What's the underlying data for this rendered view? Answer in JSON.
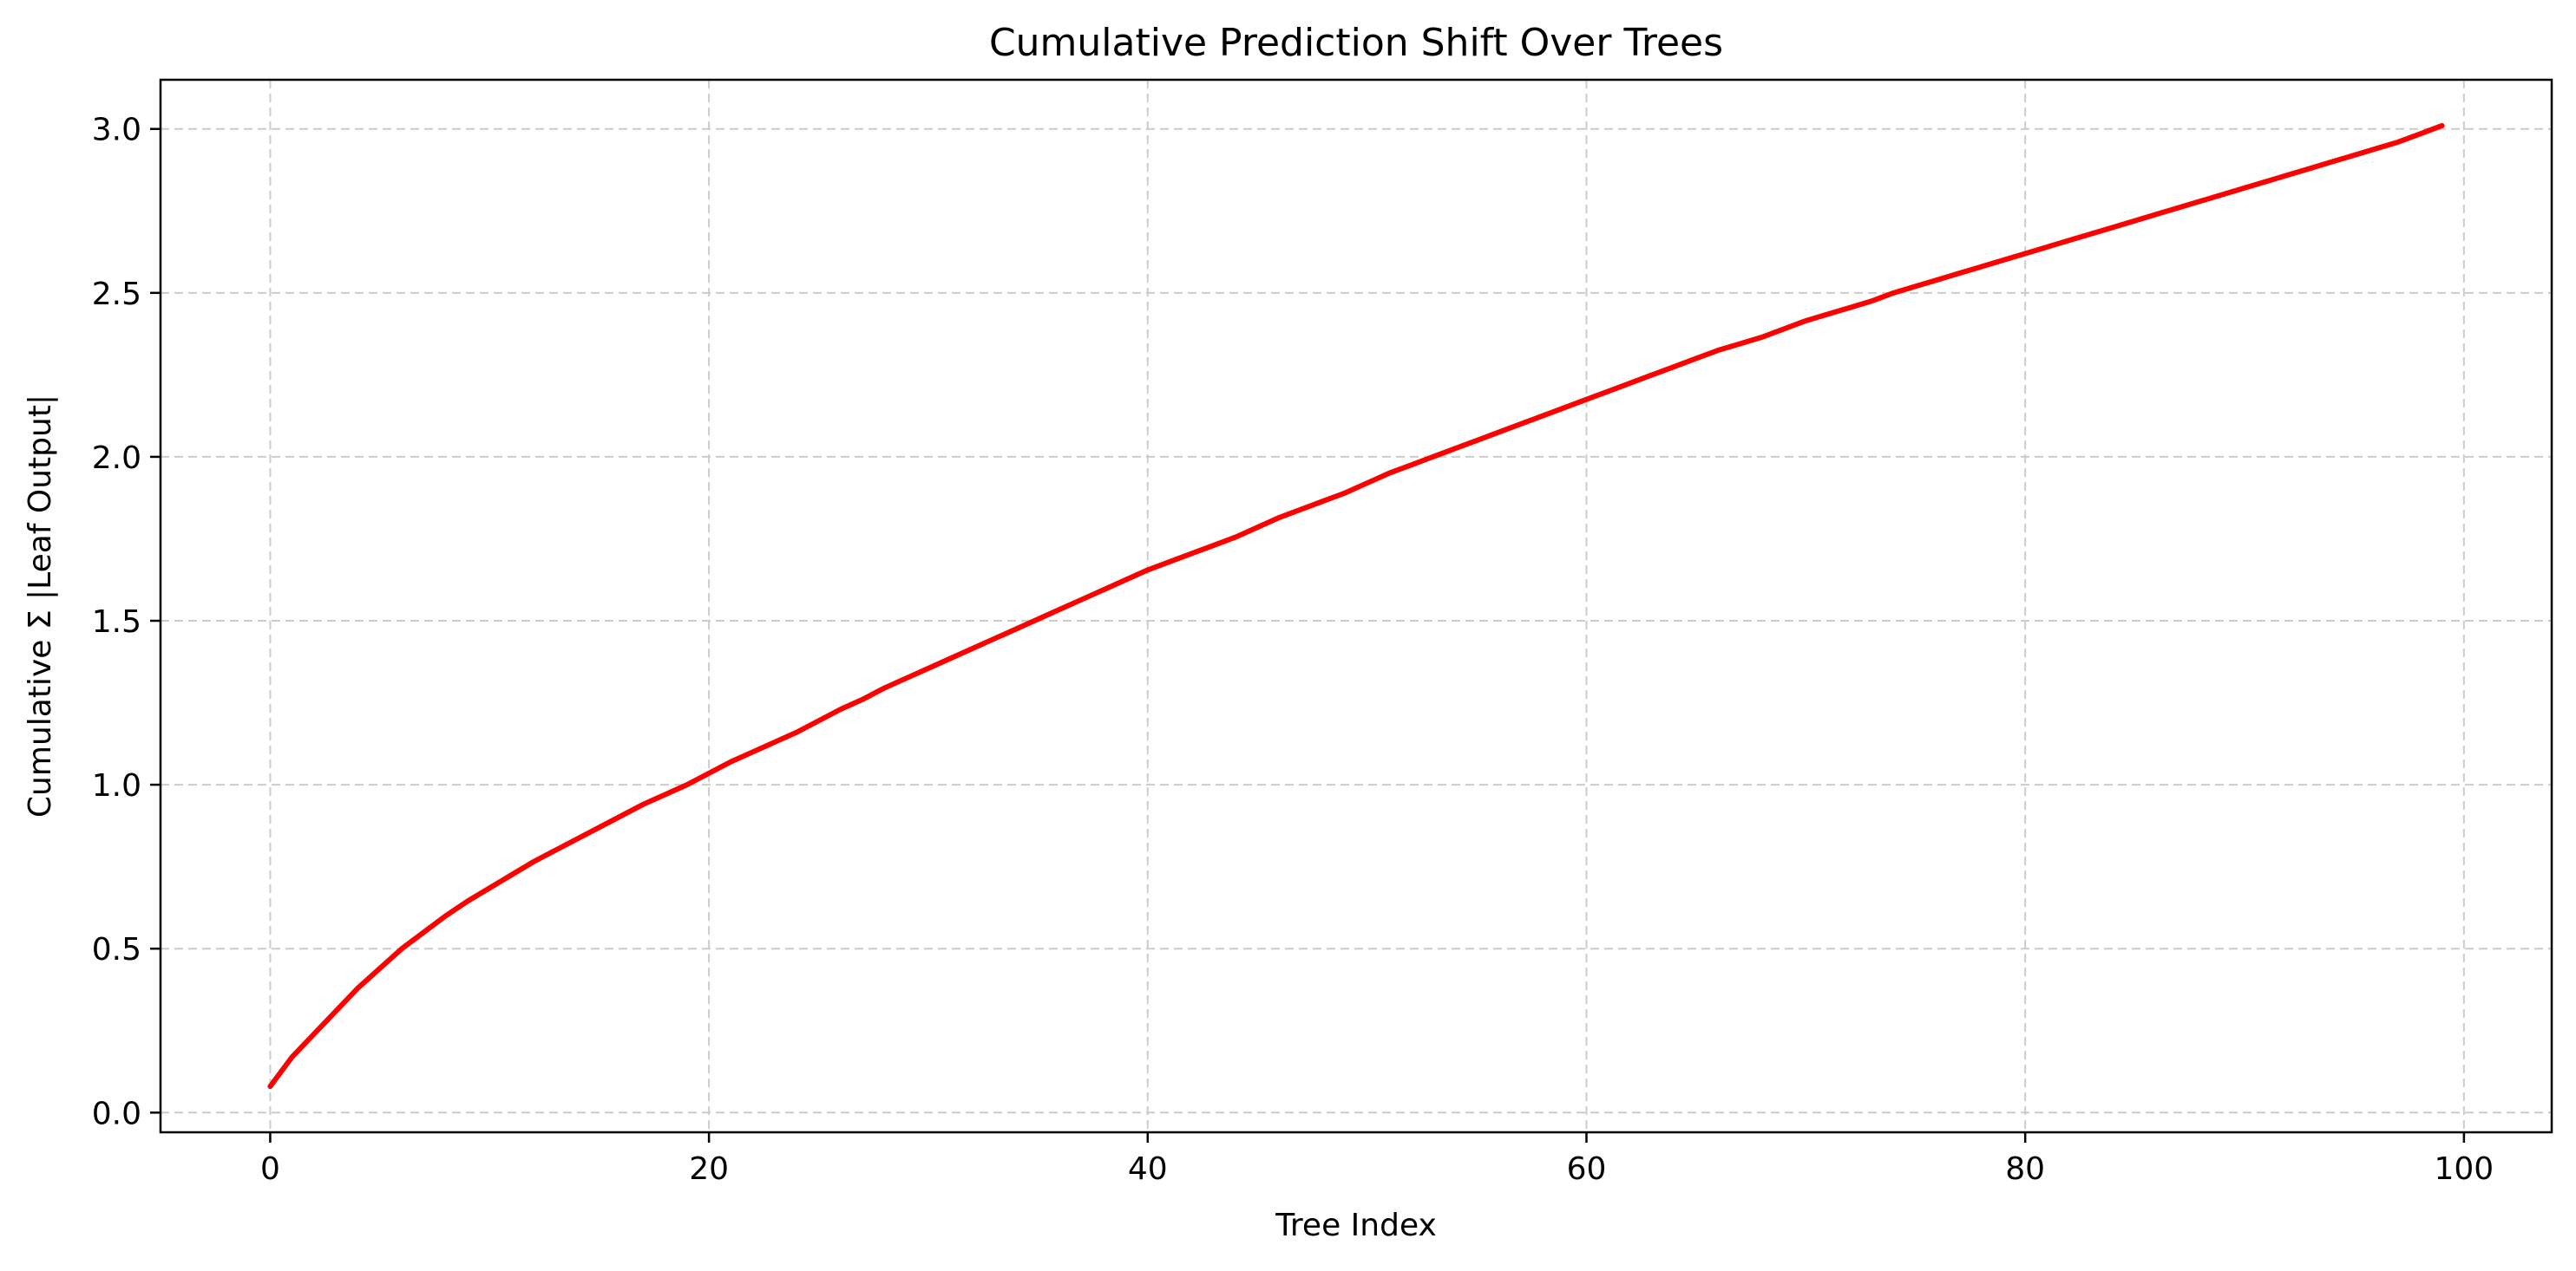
{
  "chart_data": {
    "type": "line",
    "title": "Cumulative Prediction Shift Over Trees",
    "xlabel": "Tree Index",
    "ylabel": "Cumulative Σ |Leaf Output|",
    "xlim": [
      -5,
      104
    ],
    "ylim": [
      -0.06,
      3.15
    ],
    "xticks": [
      0,
      20,
      40,
      60,
      80,
      100
    ],
    "xtick_labels": [
      "0",
      "20",
      "40",
      "60",
      "80",
      "100"
    ],
    "yticks": [
      0.0,
      0.5,
      1.0,
      1.5,
      2.0,
      2.5,
      3.0
    ],
    "ytick_labels": [
      "0.0",
      "0.5",
      "1.0",
      "1.5",
      "2.0",
      "2.5",
      "3.0"
    ],
    "grid": true,
    "series": [
      {
        "color": "#ff0000",
        "x": [
          0,
          1,
          2,
          3,
          4,
          5,
          6,
          7,
          8,
          9,
          10,
          11,
          12,
          13,
          14,
          15,
          16,
          17,
          18,
          19,
          20,
          21,
          22,
          23,
          24,
          25,
          26,
          27,
          28,
          29,
          30,
          31,
          32,
          33,
          34,
          35,
          36,
          37,
          38,
          39,
          40,
          41,
          42,
          43,
          44,
          45,
          46,
          47,
          48,
          49,
          50,
          51,
          52,
          53,
          54,
          55,
          56,
          57,
          58,
          59,
          60,
          61,
          62,
          63,
          64,
          65,
          66,
          67,
          68,
          69,
          70,
          71,
          72,
          73,
          74,
          75,
          76,
          77,
          78,
          79,
          80,
          81,
          82,
          83,
          84,
          85,
          86,
          87,
          88,
          89,
          90,
          91,
          92,
          93,
          94,
          95,
          96,
          97,
          98,
          99
        ],
        "y": [
          0.08,
          0.17,
          0.24,
          0.31,
          0.38,
          0.44,
          0.5,
          0.55,
          0.6,
          0.645,
          0.685,
          0.725,
          0.765,
          0.8,
          0.835,
          0.87,
          0.905,
          0.94,
          0.97,
          1.0,
          1.035,
          1.07,
          1.1,
          1.13,
          1.16,
          1.195,
          1.23,
          1.26,
          1.295,
          1.325,
          1.355,
          1.385,
          1.415,
          1.445,
          1.475,
          1.505,
          1.535,
          1.565,
          1.595,
          1.625,
          1.655,
          1.68,
          1.705,
          1.73,
          1.755,
          1.785,
          1.815,
          1.84,
          1.865,
          1.89,
          1.92,
          1.95,
          1.975,
          2.0,
          2.025,
          2.05,
          2.075,
          2.1,
          2.125,
          2.15,
          2.175,
          2.2,
          2.225,
          2.25,
          2.275,
          2.3,
          2.325,
          2.345,
          2.365,
          2.39,
          2.415,
          2.435,
          2.455,
          2.475,
          2.5,
          2.52,
          2.54,
          2.56,
          2.58,
          2.6,
          2.62,
          2.64,
          2.66,
          2.68,
          2.7,
          2.72,
          2.74,
          2.76,
          2.78,
          2.8,
          2.82,
          2.84,
          2.86,
          2.88,
          2.9,
          2.92,
          2.94,
          2.96,
          2.985,
          3.01
        ],
        "line_width": 3
      }
    ]
  }
}
